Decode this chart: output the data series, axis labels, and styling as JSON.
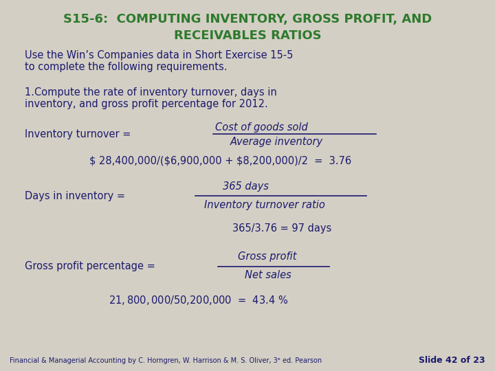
{
  "bg_color": "#d4cfc4",
  "title_line1": "S15-6:  COMPUTING INVENTORY, GROSS PROFIT, AND",
  "title_line2": "RECEIVABLES RATIOS",
  "title_color": "#2d7a2d",
  "body_color": "#1a1a6e",
  "subtitle": "Use the Win’s Companies data in Short Exercise 15-5\nto complete the following requirements.",
  "point1": "1.Compute the rate of inventory turnover, days in\ninventory, and gross profit percentage for 2012.",
  "inv_turnover_label": "Inventory turnover = ",
  "inv_turnover_num": "Cost of goods sold",
  "inv_turnover_den": "Average inventory",
  "inv_calc": "$ 28,400,000/($6,900,000 + $8,200,000)/2  =  3.76",
  "days_label": "Days in inventory = ",
  "days_num": "365 days",
  "days_den": "Inventory turnover ratio",
  "days_calc": "365/3.76 = 97 days",
  "gp_label": "Gross profit percentage = ",
  "gp_num": "Gross profit",
  "gp_den": "Net sales",
  "gp_calc": "$21,800,000/$50,200,000  =  43.4 %",
  "footer": "Financial & Managerial Accounting by C. Horngren, W. Harrison & M. S. Oliver, 3ᵉ ed. Pearson",
  "slide_label": "Slide 42 of 23",
  "footer_color": "#1a1a6e",
  "slide_label_color": "#1a1a6e"
}
